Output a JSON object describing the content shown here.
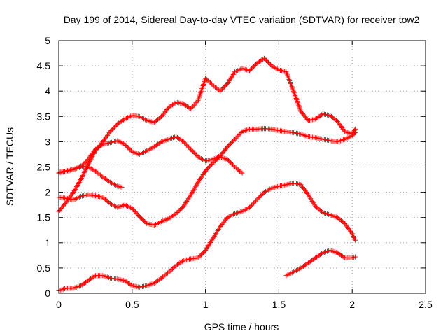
{
  "chart_data": {
    "type": "scatter",
    "title": "Day 199 of 2014, Sidereal Day-to-day VTEC variation (SDTVAR) for receiver tow2",
    "xlabel": "GPS time / hours",
    "ylabel": "SDTVAR / TECUs",
    "xlim": [
      0,
      2.5
    ],
    "ylim": [
      0,
      5
    ],
    "x_ticks": [
      "0",
      "0.5",
      "1",
      "1.5",
      "2",
      "2.5"
    ],
    "y_ticks": [
      "0",
      "0.5",
      "1",
      "1.5",
      "2",
      "2.5",
      "3",
      "3.5",
      "4",
      "4.5",
      "5"
    ],
    "x_tick_values": [
      0,
      0.5,
      1,
      1.5,
      2,
      2.5
    ],
    "y_tick_values": [
      0,
      0.5,
      1,
      1.5,
      2,
      2.5,
      3,
      3.5,
      4,
      4.5,
      5
    ],
    "grid": true,
    "marker": "+",
    "color": "#ff0000",
    "series": [
      {
        "points": [
          [
            0,
            1.62
          ],
          [
            0.05,
            1.8
          ],
          [
            0.1,
            2.0
          ],
          [
            0.15,
            2.25
          ],
          [
            0.2,
            2.55
          ],
          [
            0.25,
            2.82
          ],
          [
            0.3,
            3.0
          ],
          [
            0.35,
            3.2
          ],
          [
            0.4,
            3.35
          ],
          [
            0.45,
            3.45
          ],
          [
            0.5,
            3.52
          ],
          [
            0.55,
            3.5
          ],
          [
            0.6,
            3.42
          ],
          [
            0.65,
            3.38
          ],
          [
            0.7,
            3.5
          ],
          [
            0.75,
            3.68
          ],
          [
            0.8,
            3.78
          ],
          [
            0.85,
            3.75
          ],
          [
            0.9,
            3.65
          ],
          [
            0.95,
            3.82
          ],
          [
            1.0,
            4.25
          ],
          [
            1.05,
            4.12
          ],
          [
            1.1,
            4.0
          ],
          [
            1.15,
            4.15
          ],
          [
            1.2,
            4.38
          ],
          [
            1.25,
            4.45
          ],
          [
            1.3,
            4.4
          ],
          [
            1.35,
            4.55
          ],
          [
            1.4,
            4.65
          ],
          [
            1.45,
            4.5
          ],
          [
            1.5,
            4.42
          ],
          [
            1.55,
            4.38
          ],
          [
            1.6,
            4.0
          ],
          [
            1.65,
            3.6
          ],
          [
            1.7,
            3.42
          ],
          [
            1.75,
            3.45
          ],
          [
            1.8,
            3.55
          ],
          [
            1.85,
            3.52
          ],
          [
            1.9,
            3.4
          ],
          [
            1.95,
            3.2
          ],
          [
            2.0,
            3.15
          ],
          [
            2.02,
            3.25
          ]
        ]
      },
      {
        "points": [
          [
            0,
            2.38
          ],
          [
            0.05,
            2.42
          ],
          [
            0.1,
            2.45
          ],
          [
            0.15,
            2.5
          ],
          [
            0.2,
            2.65
          ],
          [
            0.25,
            2.85
          ],
          [
            0.3,
            2.95
          ],
          [
            0.35,
            2.98
          ],
          [
            0.4,
            3.02
          ],
          [
            0.45,
            2.95
          ],
          [
            0.5,
            2.8
          ],
          [
            0.55,
            2.75
          ],
          [
            0.6,
            2.82
          ],
          [
            0.65,
            2.9
          ],
          [
            0.7,
            3.0
          ],
          [
            0.75,
            3.05
          ],
          [
            0.8,
            3.1
          ],
          [
            0.85,
            3.0
          ],
          [
            0.9,
            2.85
          ],
          [
            0.95,
            2.7
          ],
          [
            1.0,
            2.62
          ],
          [
            1.05,
            2.65
          ],
          [
            1.1,
            2.72
          ],
          [
            1.15,
            2.9
          ],
          [
            1.2,
            3.05
          ],
          [
            1.25,
            3.2
          ],
          [
            1.3,
            3.25
          ],
          [
            1.35,
            3.25
          ],
          [
            1.4,
            3.26
          ],
          [
            1.45,
            3.25
          ],
          [
            1.5,
            3.22
          ],
          [
            1.55,
            3.2
          ],
          [
            1.6,
            3.18
          ],
          [
            1.65,
            3.15
          ],
          [
            1.7,
            3.1
          ],
          [
            1.75,
            3.08
          ],
          [
            1.8,
            3.05
          ],
          [
            1.85,
            3.02
          ],
          [
            1.9,
            3.0
          ],
          [
            1.95,
            3.05
          ],
          [
            2.0,
            3.12
          ],
          [
            2.02,
            3.18
          ]
        ]
      },
      {
        "points": [
          [
            0,
            2.4
          ],
          [
            0.05,
            2.42
          ],
          [
            0.1,
            2.45
          ],
          [
            0.15,
            2.52
          ],
          [
            0.2,
            2.5
          ],
          [
            0.25,
            2.42
          ],
          [
            0.3,
            2.3
          ],
          [
            0.35,
            2.2
          ],
          [
            0.4,
            2.12
          ],
          [
            0.43,
            2.1
          ]
        ]
      },
      {
        "points": [
          [
            0,
            1.9
          ],
          [
            0.05,
            1.88
          ],
          [
            0.1,
            1.85
          ],
          [
            0.15,
            1.92
          ],
          [
            0.2,
            1.95
          ],
          [
            0.25,
            1.93
          ],
          [
            0.3,
            1.9
          ],
          [
            0.35,
            1.78
          ],
          [
            0.4,
            1.7
          ],
          [
            0.45,
            1.75
          ],
          [
            0.5,
            1.68
          ],
          [
            0.55,
            1.52
          ],
          [
            0.6,
            1.38
          ],
          [
            0.65,
            1.35
          ],
          [
            0.7,
            1.42
          ],
          [
            0.75,
            1.48
          ],
          [
            0.8,
            1.58
          ],
          [
            0.85,
            1.72
          ],
          [
            0.9,
            1.95
          ],
          [
            0.95,
            2.2
          ],
          [
            1.0,
            2.42
          ],
          [
            1.05,
            2.58
          ],
          [
            1.1,
            2.7
          ],
          [
            1.15,
            2.65
          ],
          [
            1.2,
            2.5
          ],
          [
            1.25,
            2.38
          ]
        ]
      },
      {
        "points": [
          [
            0,
            0.05
          ],
          [
            0.05,
            0.1
          ],
          [
            0.1,
            0.1
          ],
          [
            0.15,
            0.15
          ],
          [
            0.2,
            0.25
          ],
          [
            0.25,
            0.35
          ],
          [
            0.3,
            0.35
          ],
          [
            0.35,
            0.3
          ],
          [
            0.4,
            0.28
          ],
          [
            0.45,
            0.25
          ],
          [
            0.5,
            0.15
          ],
          [
            0.55,
            0.12
          ],
          [
            0.6,
            0.15
          ],
          [
            0.65,
            0.2
          ],
          [
            0.7,
            0.3
          ],
          [
            0.75,
            0.42
          ],
          [
            0.8,
            0.55
          ],
          [
            0.85,
            0.65
          ],
          [
            0.9,
            0.68
          ],
          [
            0.95,
            0.7
          ],
          [
            1.0,
            0.85
          ],
          [
            1.05,
            1.08
          ],
          [
            1.1,
            1.32
          ],
          [
            1.15,
            1.5
          ],
          [
            1.2,
            1.58
          ],
          [
            1.25,
            1.62
          ],
          [
            1.3,
            1.7
          ],
          [
            1.35,
            1.85
          ],
          [
            1.4,
            2.0
          ],
          [
            1.45,
            2.08
          ],
          [
            1.5,
            2.12
          ],
          [
            1.55,
            2.15
          ],
          [
            1.6,
            2.18
          ],
          [
            1.65,
            2.15
          ],
          [
            1.7,
            1.95
          ],
          [
            1.75,
            1.72
          ],
          [
            1.8,
            1.6
          ],
          [
            1.85,
            1.55
          ],
          [
            1.9,
            1.5
          ],
          [
            1.95,
            1.38
          ],
          [
            2.0,
            1.18
          ],
          [
            2.02,
            1.05
          ]
        ]
      },
      {
        "points": [
          [
            1.55,
            0.35
          ],
          [
            1.6,
            0.42
          ],
          [
            1.65,
            0.5
          ],
          [
            1.7,
            0.6
          ],
          [
            1.75,
            0.7
          ],
          [
            1.8,
            0.8
          ],
          [
            1.85,
            0.85
          ],
          [
            1.9,
            0.8
          ],
          [
            1.95,
            0.7
          ],
          [
            2.0,
            0.7
          ],
          [
            2.02,
            0.72
          ]
        ]
      }
    ]
  }
}
